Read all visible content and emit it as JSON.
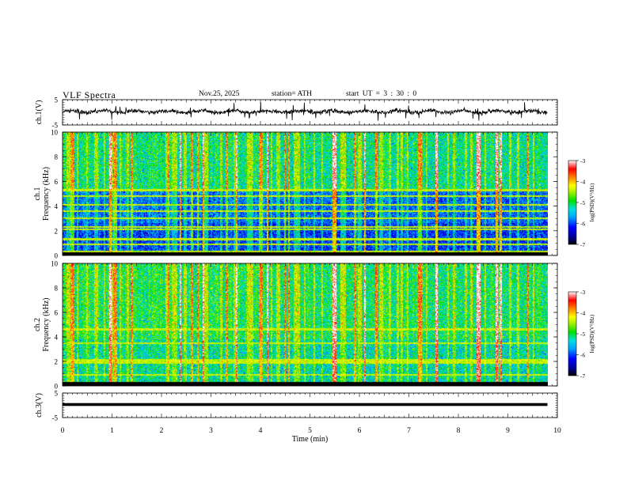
{
  "header": {
    "title": "VLF  Spectra",
    "date": "Nov.25, 2025",
    "station": "station= ATH",
    "start_ut": "start  UT  =   3  : 30 : 0"
  },
  "chart_data": [
    {
      "type": "line",
      "name": "ch1-waveform",
      "ylabel": "ch.1(V)",
      "yticks": [
        "5",
        "-5"
      ],
      "ylim": [
        -5,
        5
      ],
      "xlim": [
        0,
        10
      ],
      "description_values": {
        "mean": 0.3,
        "amplitude_typical": 1.2,
        "spikes_to": 3.5
      }
    },
    {
      "type": "heatmap",
      "name": "ch1-spectrogram",
      "ylabel_line1": "ch.1",
      "ylabel_line2": "Frequency  (kHz)",
      "yticks": [
        "0",
        "2",
        "4",
        "6",
        "8",
        "10"
      ],
      "ylim": [
        0,
        10
      ],
      "xlim": [
        0,
        10
      ],
      "colorbar": {
        "label": "log(PSD)(V²/Hz)",
        "ticks": [
          "-3",
          "-4",
          "-5",
          "-6",
          "-7"
        ],
        "range": [
          -7,
          -3
        ]
      },
      "bands_khz": [
        0.3,
        0.9,
        1.3,
        2.1,
        2.3,
        3.0,
        3.6,
        4.1,
        4.8,
        5.3
      ]
    },
    {
      "type": "heatmap",
      "name": "ch2-spectrogram",
      "ylabel_line1": "ch.2",
      "ylabel_line2": "Frequency  (kHz)",
      "yticks": [
        "0",
        "2",
        "4",
        "6",
        "8",
        "10"
      ],
      "ylim": [
        0,
        10
      ],
      "xlim": [
        0,
        10
      ],
      "colorbar": {
        "label": "log(PSD)(V²/Hz)",
        "ticks": [
          "-3",
          "-4",
          "-5",
          "-6",
          "-7"
        ],
        "range": [
          -7,
          -3
        ]
      },
      "bands_khz": [
        0.9,
        1.9,
        2.1,
        3.5,
        4.6
      ]
    },
    {
      "type": "line",
      "name": "ch3-waveform",
      "ylabel": "ch.3(V)",
      "yticks": [
        "5",
        "-5"
      ],
      "ylim": [
        -5,
        5
      ],
      "xlim": [
        0,
        10
      ],
      "level": 0
    }
  ],
  "xaxis": {
    "label": "Time  (min)",
    "ticks": [
      "0",
      "1",
      "2",
      "3",
      "4",
      "5",
      "6",
      "7",
      "8",
      "9",
      "10"
    ],
    "range": [
      0,
      10
    ],
    "data_end_min": 9.8
  }
}
